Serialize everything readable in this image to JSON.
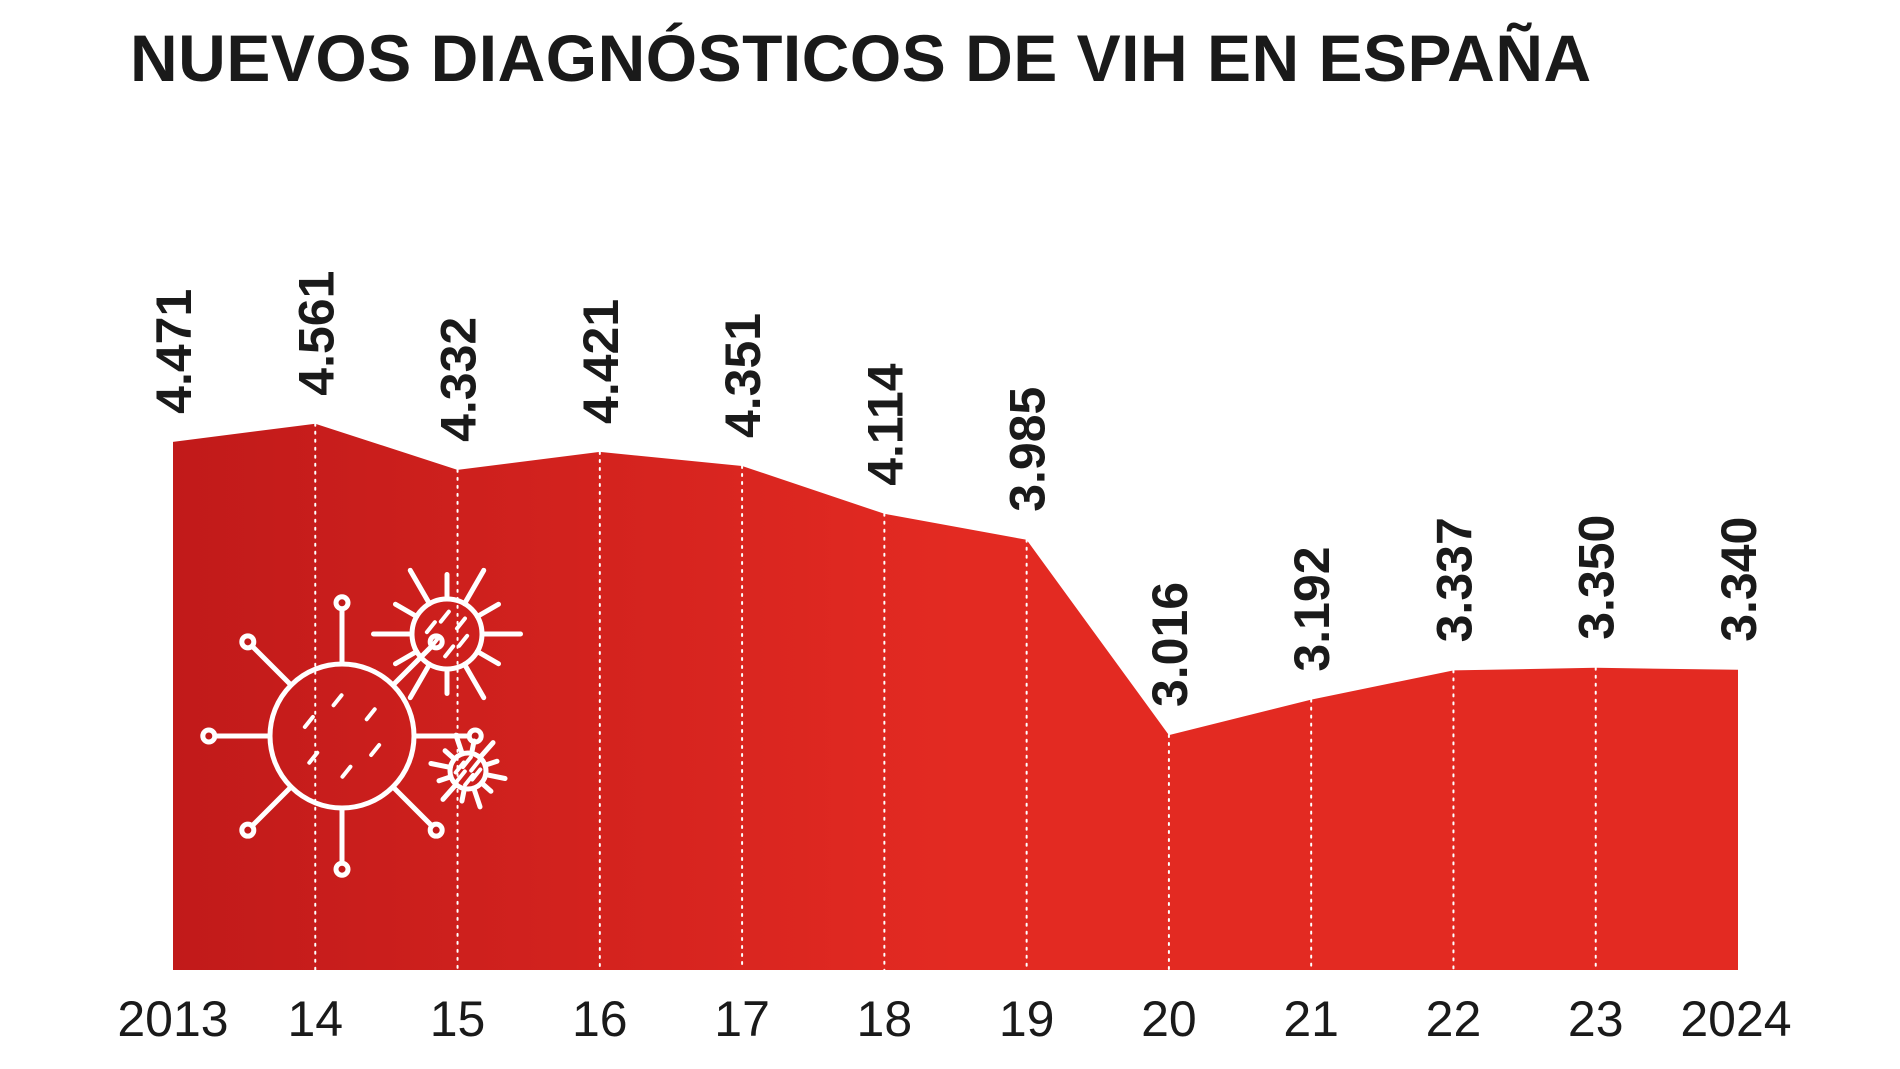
{
  "colors": {
    "area_light": "#e32a22",
    "area_dark": "#c11a1a",
    "text": "#1a1a1a",
    "gridline": "#ffffff"
  },
  "icons": [
    "virus-icon"
  ],
  "chart_data": {
    "type": "area",
    "title": "NUEVOS DIAGNÓSTICOS DE VIH EN ESPAÑA",
    "xlabel": "",
    "ylabel": "",
    "grid": "vertical dotted lines at each year",
    "legend": "none",
    "x": [
      "2013",
      "14",
      "15",
      "16",
      "17",
      "18",
      "19",
      "20",
      "21",
      "22",
      "23",
      "2024"
    ],
    "values": [
      4471,
      4561,
      4332,
      4421,
      4351,
      4114,
      3985,
      3016,
      3192,
      3337,
      3350,
      3340
    ],
    "value_labels": [
      "4.471",
      "4.561",
      "4.332",
      "4.421",
      "4.351",
      "4.114",
      "3.985",
      "3.016",
      "3.192",
      "3.337",
      "3.350",
      "3.340"
    ]
  }
}
